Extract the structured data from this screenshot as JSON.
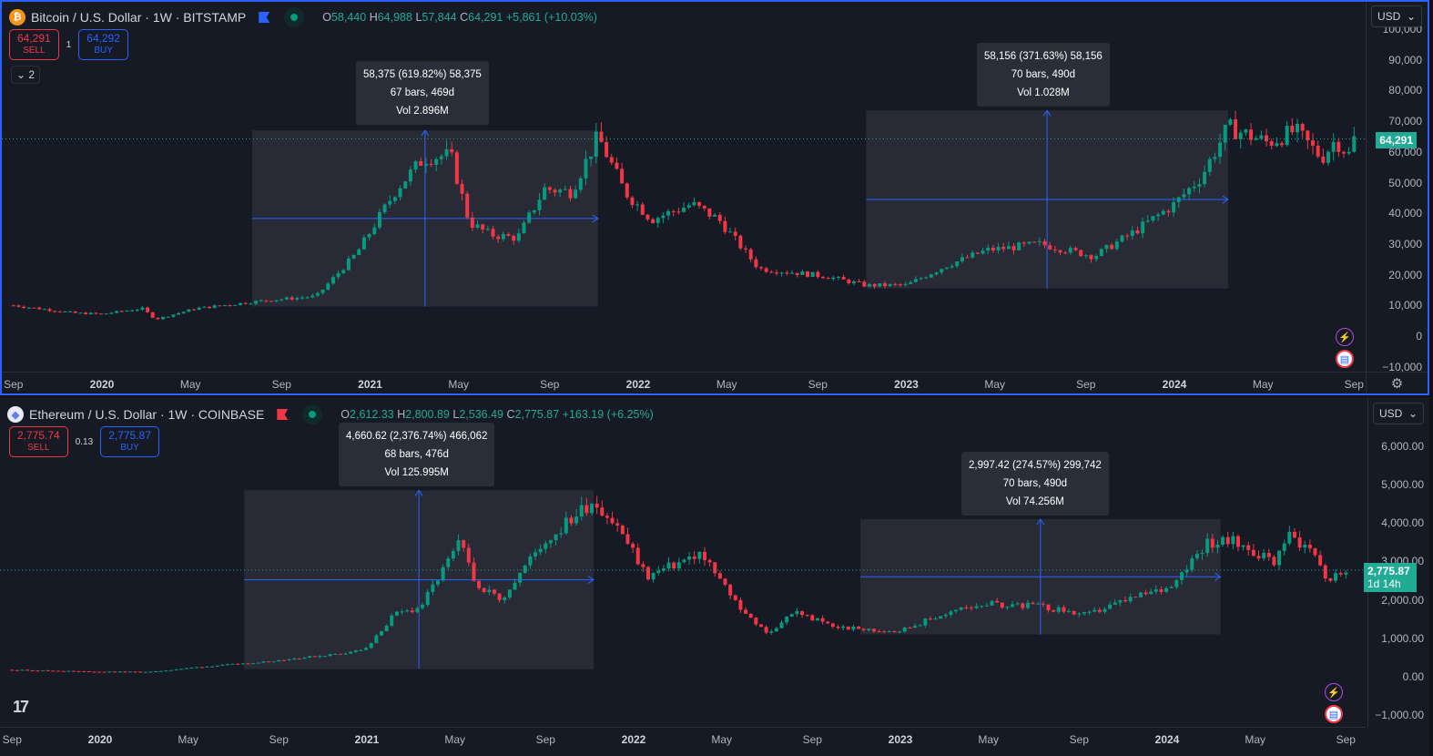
{
  "colors": {
    "up": "#089981",
    "down": "#f23645",
    "accent": "#2962ff",
    "bg": "#161a25"
  },
  "charts": [
    {
      "symbol": "Bitcoin / U.S. Dollar · 1W · BITSTAMP",
      "coin_icon": "bitcoin-icon",
      "flag_color": "#2962ff",
      "ohlc": {
        "o_label": "O",
        "o": "58,440",
        "h_label": "H",
        "h": "64,988",
        "l_label": "L",
        "l": "57,844",
        "c_label": "C",
        "c": "64,291",
        "change": "+5,861 (+10.03%)"
      },
      "sell": {
        "price": "64,291",
        "label": "SELL"
      },
      "spread": "1",
      "buy": {
        "price": "64,292",
        "label": "BUY"
      },
      "indicators_collapsed": "2",
      "currency": "USD",
      "last_price": "64,291",
      "price_ticks": [
        "100,000",
        "90,000",
        "80,000",
        "70,000",
        "60,000",
        "50,000",
        "40,000",
        "30,000",
        "20,000",
        "10,000",
        "0",
        "−10,000"
      ],
      "time_ticks": [
        "Sep",
        "2020",
        "May",
        "Sep",
        "2021",
        "May",
        "Sep",
        "2022",
        "May",
        "Sep",
        "2023",
        "May",
        "Sep",
        "2024",
        "May",
        "Sep"
      ],
      "measures": [
        {
          "line1": "58,375 (619.82%) 58,375",
          "line2": "67 bars, 469d",
          "line3": "Vol 2.896M"
        },
        {
          "line1": "58,156 (371.63%) 58,156",
          "line2": "70 bars, 490d",
          "line3": "Vol 1.028M"
        }
      ]
    },
    {
      "symbol": "Ethereum / U.S. Dollar · 1W · COINBASE",
      "coin_icon": "ethereum-icon",
      "flag_color": "#f23645",
      "ohlc": {
        "o_label": "O",
        "o": "2,612.33",
        "h_label": "H",
        "h": "2,800.89",
        "l_label": "L",
        "l": "2,536.49",
        "c_label": "C",
        "c": "2,775.87",
        "change": "+163.19 (+6.25%)"
      },
      "sell": {
        "price": "2,775.74",
        "label": "SELL"
      },
      "spread": "0.13",
      "buy": {
        "price": "2,775.87",
        "label": "BUY"
      },
      "currency": "USD",
      "last_price": "2,775.87",
      "countdown": "1d 14h",
      "price_ticks": [
        "6,000.00",
        "5,000.00",
        "4,000.00",
        "3,000.00",
        "2,000.00",
        "1,000.00",
        "0.00",
        "−1,000.00"
      ],
      "time_ticks": [
        "Sep",
        "2020",
        "May",
        "Sep",
        "2021",
        "May",
        "Sep",
        "2022",
        "May",
        "Sep",
        "2023",
        "May",
        "Sep",
        "2024",
        "May",
        "Sep"
      ],
      "measures": [
        {
          "line1": "4,660.62 (2,376.74%) 466,062",
          "line2": "68 bars, 476d",
          "line3": "Vol 125.995M"
        },
        {
          "line1": "2,997.42 (274.57%) 299,742",
          "line2": "70 bars, 490d",
          "line3": "Vol 74.256M"
        }
      ]
    }
  ],
  "chart_data": [
    {
      "type": "candlestick",
      "title": "Bitcoin / U.S. Dollar · 1W · BITSTAMP",
      "ylim": [
        -10000,
        100000
      ],
      "x_unit": "year",
      "closes": [
        [
          2019.67,
          10000
        ],
        [
          2019.9,
          7500
        ],
        [
          2020.0,
          7200
        ],
        [
          2020.15,
          9000
        ],
        [
          2020.2,
          5500
        ],
        [
          2020.35,
          9000
        ],
        [
          2020.6,
          11500
        ],
        [
          2020.8,
          13000
        ],
        [
          2020.95,
          27000
        ],
        [
          2021.1,
          48000
        ],
        [
          2021.2,
          58000
        ],
        [
          2021.3,
          59000
        ],
        [
          2021.37,
          37000
        ],
        [
          2021.45,
          33000
        ],
        [
          2021.55,
          32000
        ],
        [
          2021.65,
          48000
        ],
        [
          2021.75,
          47000
        ],
        [
          2021.85,
          65000
        ],
        [
          2021.95,
          47000
        ],
        [
          2022.05,
          38000
        ],
        [
          2022.2,
          43000
        ],
        [
          2022.3,
          38000
        ],
        [
          2022.45,
          22000
        ],
        [
          2022.55,
          21000
        ],
        [
          2022.7,
          19500
        ],
        [
          2022.85,
          16500
        ],
        [
          2023.0,
          16600
        ],
        [
          2023.15,
          23000
        ],
        [
          2023.3,
          28000
        ],
        [
          2023.5,
          30000
        ],
        [
          2023.7,
          26000
        ],
        [
          2023.85,
          34000
        ],
        [
          2024.0,
          43000
        ],
        [
          2024.1,
          52000
        ],
        [
          2024.2,
          68000
        ],
        [
          2024.35,
          63000
        ],
        [
          2024.45,
          67000
        ],
        [
          2024.55,
          58000
        ],
        [
          2024.6,
          64000
        ],
        [
          2024.65,
          59000
        ],
        [
          2024.67,
          64291
        ]
      ],
      "measure_ranges": [
        {
          "x": [
            2020.56,
            2021.85
          ],
          "y": [
            9600,
            67000
          ]
        },
        {
          "x": [
            2022.85,
            2024.2
          ],
          "y": [
            15500,
            73500
          ]
        }
      ]
    },
    {
      "type": "candlestick",
      "title": "Ethereum / U.S. Dollar · 1W · COINBASE",
      "ylim": [
        -1000,
        6000
      ],
      "x_unit": "year",
      "closes": [
        [
          2019.67,
          180
        ],
        [
          2020.0,
          130
        ],
        [
          2020.2,
          130
        ],
        [
          2020.35,
          240
        ],
        [
          2020.6,
          380
        ],
        [
          2020.9,
          600
        ],
        [
          2021.0,
          730
        ],
        [
          2021.1,
          1600
        ],
        [
          2021.2,
          1800
        ],
        [
          2021.35,
          3500
        ],
        [
          2021.4,
          2500
        ],
        [
          2021.5,
          2000
        ],
        [
          2021.65,
          3400
        ],
        [
          2021.85,
          4600
        ],
        [
          2021.95,
          3800
        ],
        [
          2022.05,
          2600
        ],
        [
          2022.25,
          3200
        ],
        [
          2022.4,
          1800
        ],
        [
          2022.5,
          1100
        ],
        [
          2022.6,
          1700
        ],
        [
          2022.75,
          1300
        ],
        [
          2022.9,
          1200
        ],
        [
          2023.0,
          1200
        ],
        [
          2023.15,
          1600
        ],
        [
          2023.3,
          1900
        ],
        [
          2023.5,
          1850
        ],
        [
          2023.7,
          1600
        ],
        [
          2023.85,
          2000
        ],
        [
          2024.0,
          2300
        ],
        [
          2024.15,
          3500
        ],
        [
          2024.25,
          3500
        ],
        [
          2024.4,
          3000
        ],
        [
          2024.45,
          3700
        ],
        [
          2024.55,
          3300
        ],
        [
          2024.6,
          2500
        ],
        [
          2024.67,
          2776
        ]
      ],
      "measure_ranges": [
        {
          "x": [
            2020.54,
            2021.85
          ],
          "y": [
            200,
            4850
          ]
        },
        {
          "x": [
            2022.85,
            2024.2
          ],
          "y": [
            1100,
            4100
          ]
        }
      ]
    }
  ]
}
